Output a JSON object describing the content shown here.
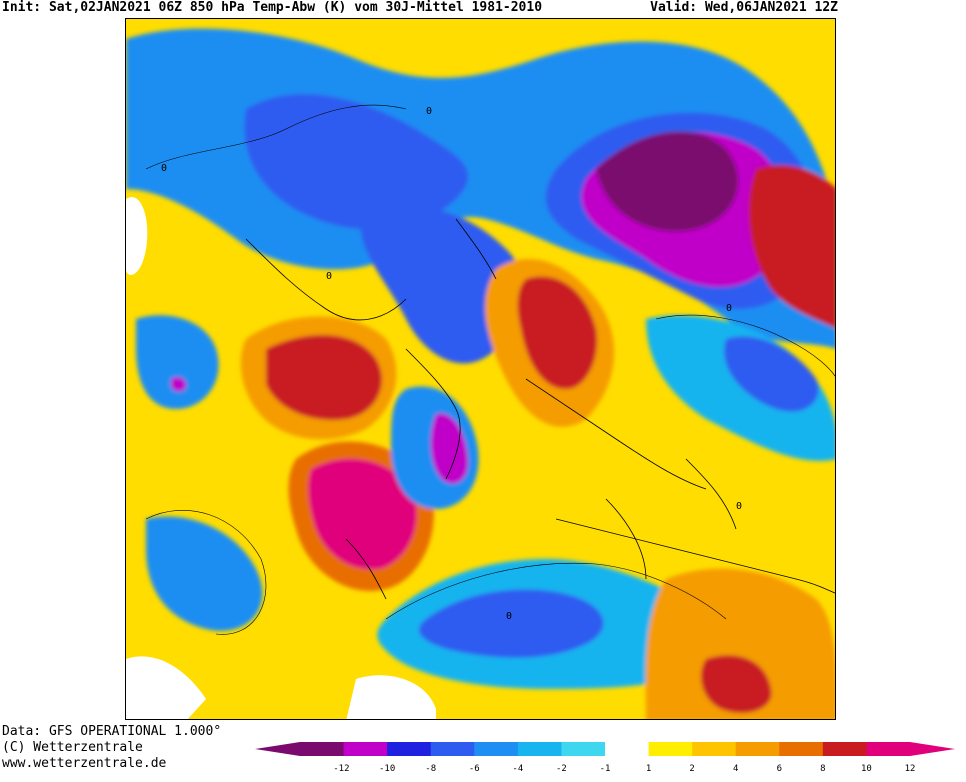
{
  "header": {
    "init": "Init: Sat,02JAN2021 06Z 850 hPa Temp-Abw (K) vom 30J-Mittel 1981-2010",
    "valid": "Valid: Wed,06JAN2021 12Z"
  },
  "footer": {
    "data": "Data: GFS OPERATIONAL 1.000°",
    "copyright": "(C) Wetterzentrale",
    "website": "www.wetterzentrale.de"
  },
  "map": {
    "zero_contour_label": "0"
  },
  "colorbar": {
    "labels": [
      "-12",
      "-10",
      "-8",
      "-6",
      "-4",
      "-2",
      "-1",
      "1",
      "2",
      "4",
      "6",
      "8",
      "10",
      "12"
    ],
    "colors": [
      "#7a0a6e",
      "#c000c8",
      "#2020e0",
      "#2f5cf0",
      "#1f8ef2",
      "#18b4ef",
      "#3fd6ef",
      "#ffffff",
      "#ffee00",
      "#ffc400",
      "#f59c00",
      "#e86e00",
      "#c81c20",
      "#e0007c"
    ]
  }
}
